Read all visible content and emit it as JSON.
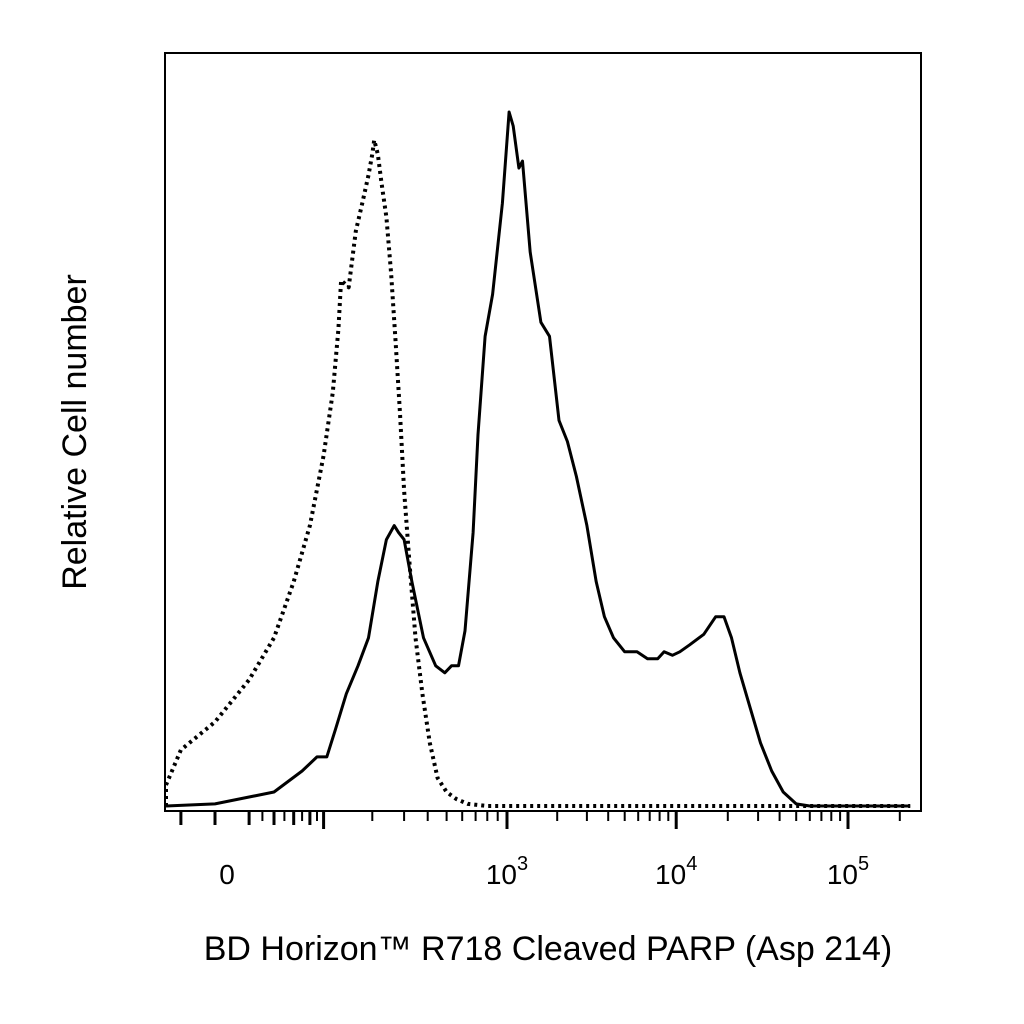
{
  "chart_data": {
    "type": "line",
    "chart_kind": "flow cytometry histogram overlay",
    "title": "",
    "xlabel": "BD Horizon™ R718 Cleaved PARP (Asp 214)",
    "ylabel": "Relative Cell number",
    "x_scale": "biexponential",
    "x_ticks": [
      {
        "value": 0,
        "base": "0",
        "exp": ""
      },
      {
        "value": 1000,
        "base": "10",
        "exp": "3"
      },
      {
        "value": 10000,
        "base": "10",
        "exp": "4"
      },
      {
        "value": 100000,
        "base": "10",
        "exp": "5"
      }
    ],
    "xlim": [
      -200,
      230000
    ],
    "ylim": [
      0,
      100
    ],
    "grid": false,
    "legend": "none",
    "series": [
      {
        "style": "dotted",
        "color": "#000000",
        "points": [
          [
            -200,
            0
          ],
          [
            -100,
            1
          ],
          [
            -50,
            3
          ],
          [
            -20,
            8
          ],
          [
            0,
            12
          ],
          [
            20,
            18
          ],
          [
            40,
            24
          ],
          [
            60,
            32
          ],
          [
            80,
            40
          ],
          [
            100,
            50
          ],
          [
            115,
            59
          ],
          [
            125,
            68
          ],
          [
            130,
            75
          ],
          [
            145,
            74
          ],
          [
            160,
            82
          ],
          [
            175,
            86
          ],
          [
            190,
            90
          ],
          [
            200,
            93
          ],
          [
            205,
            95
          ],
          [
            215,
            93
          ],
          [
            225,
            89
          ],
          [
            240,
            84
          ],
          [
            255,
            76
          ],
          [
            270,
            66
          ],
          [
            285,
            56
          ],
          [
            300,
            45
          ],
          [
            320,
            35
          ],
          [
            345,
            24
          ],
          [
            375,
            16
          ],
          [
            410,
            9
          ],
          [
            450,
            4
          ],
          [
            500,
            2
          ],
          [
            560,
            1
          ],
          [
            640,
            0.3
          ],
          [
            800,
            0
          ],
          [
            230000,
            0
          ]
        ]
      },
      {
        "style": "solid",
        "color": "#000000",
        "points": [
          [
            -200,
            0
          ],
          [
            0,
            0.3
          ],
          [
            40,
            2
          ],
          [
            70,
            5
          ],
          [
            90,
            7
          ],
          [
            105,
            7
          ],
          [
            120,
            11
          ],
          [
            140,
            16
          ],
          [
            165,
            20
          ],
          [
            190,
            24
          ],
          [
            215,
            32
          ],
          [
            240,
            38
          ],
          [
            265,
            40
          ],
          [
            280,
            39
          ],
          [
            300,
            38
          ],
          [
            330,
            32
          ],
          [
            380,
            24
          ],
          [
            440,
            20
          ],
          [
            490,
            19
          ],
          [
            530,
            20
          ],
          [
            575,
            20
          ],
          [
            620,
            25
          ],
          [
            680,
            39
          ],
          [
            720,
            53
          ],
          [
            780,
            67
          ],
          [
            850,
            73
          ],
          [
            950,
            86
          ],
          [
            1030,
            99
          ],
          [
            1090,
            97
          ],
          [
            1180,
            91
          ],
          [
            1240,
            92
          ],
          [
            1380,
            79
          ],
          [
            1600,
            69
          ],
          [
            1800,
            67
          ],
          [
            2050,
            55
          ],
          [
            2300,
            52
          ],
          [
            2600,
            47
          ],
          [
            3000,
            40
          ],
          [
            3400,
            32
          ],
          [
            3800,
            27
          ],
          [
            4300,
            24
          ],
          [
            5000,
            22
          ],
          [
            5900,
            22
          ],
          [
            6800,
            21
          ],
          [
            7800,
            21
          ],
          [
            8500,
            22
          ],
          [
            9500,
            21.5
          ],
          [
            10500,
            22
          ],
          [
            12000,
            23
          ],
          [
            14500,
            24.5
          ],
          [
            17000,
            27
          ],
          [
            19000,
            27
          ],
          [
            21000,
            24
          ],
          [
            23500,
            19
          ],
          [
            27000,
            14
          ],
          [
            31000,
            9
          ],
          [
            36000,
            5
          ],
          [
            42000,
            2
          ],
          [
            50000,
            0.3
          ],
          [
            60000,
            0
          ],
          [
            230000,
            0
          ]
        ]
      }
    ]
  }
}
